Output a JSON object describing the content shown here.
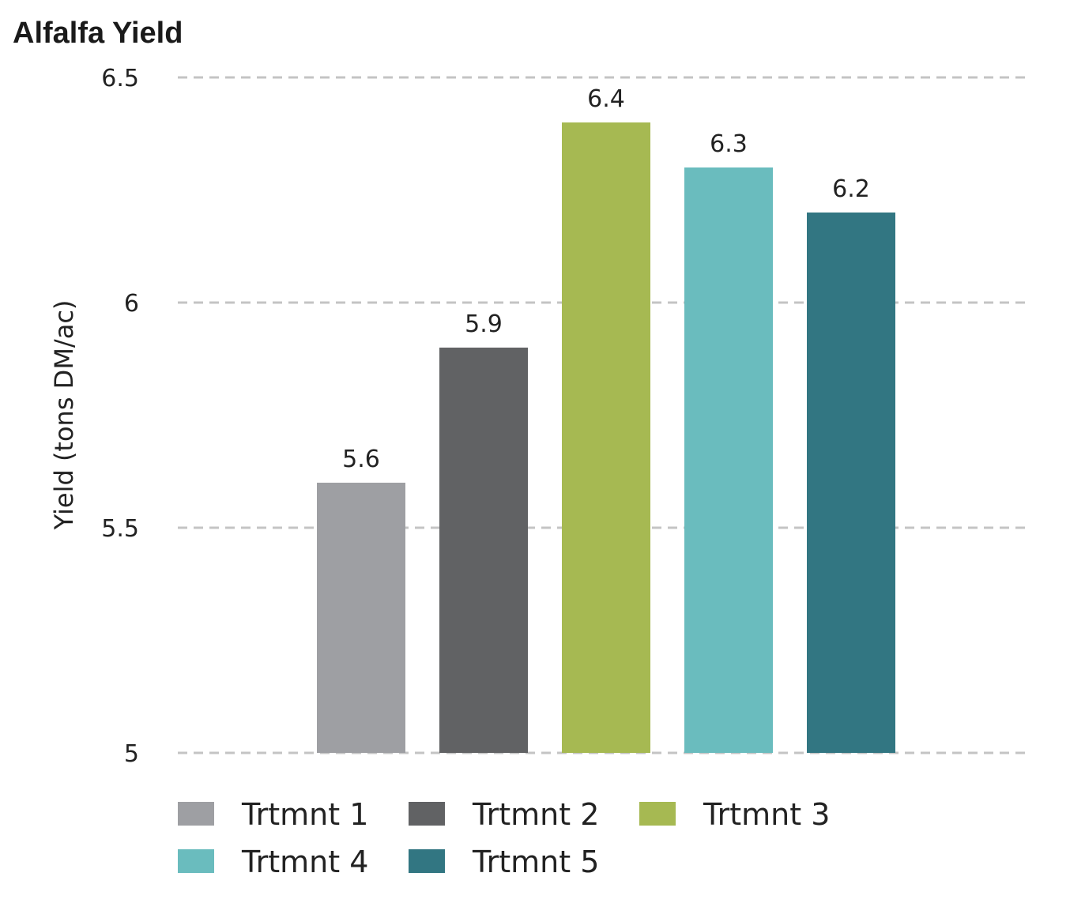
{
  "chart_data": {
    "type": "bar",
    "title": "Alfalfa Yield",
    "ylabel": "Yield (tons DM/ac)",
    "xlabel": "",
    "ylim": [
      5,
      6.5
    ],
    "yticks": [
      {
        "value": 5,
        "label": "5"
      },
      {
        "value": 5.5,
        "label": "5.5"
      },
      {
        "value": 6,
        "label": "6"
      },
      {
        "value": 6.5,
        "label": "6.5"
      }
    ],
    "grid": true,
    "legend_position": "bottom",
    "categories": [
      "Trtmnt 1",
      "Trtmnt 2",
      "Trtmnt 3",
      "Trtmnt 4",
      "Trtmnt 5"
    ],
    "values": [
      5.6,
      5.9,
      6.4,
      6.3,
      6.2
    ],
    "value_labels": [
      "5.6",
      "5.9",
      "6.4",
      "6.3",
      "6.2"
    ],
    "colors": [
      "#9e9fa3",
      "#616264",
      "#a6b952",
      "#6abcbe",
      "#327682"
    ]
  }
}
